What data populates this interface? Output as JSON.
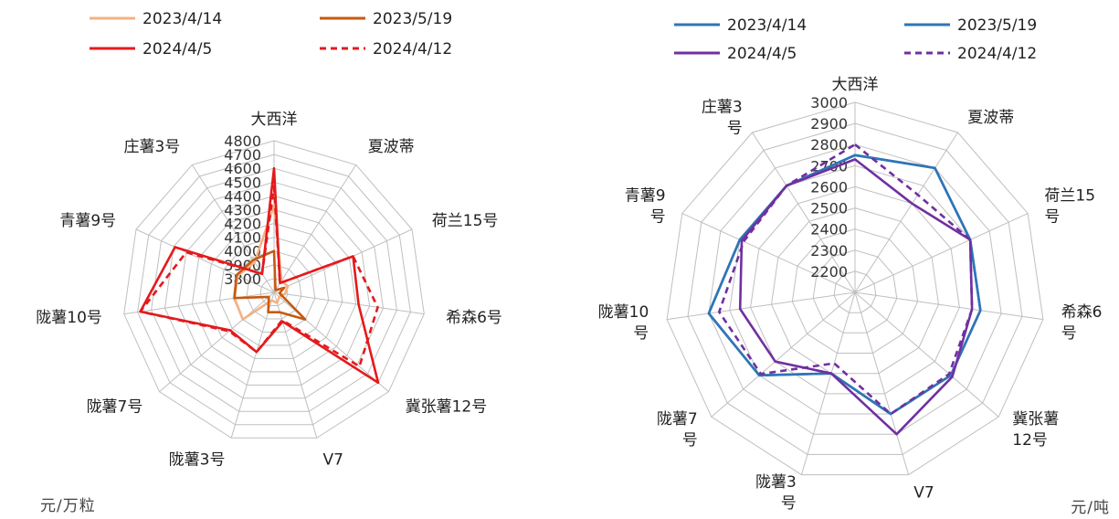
{
  "chart_data": [
    {
      "type": "radar",
      "unit": "元/万粒",
      "axes": [
        "大西洋",
        "夏波蒂",
        "荷兰15号",
        "希森6号",
        "冀张薯12号",
        "V7",
        "陇薯3号",
        "陇薯7号",
        "陇薯10号",
        "青薯9号",
        "庄薯3号"
      ],
      "ticks": [
        3800,
        3900,
        4000,
        4100,
        4200,
        4300,
        4400,
        4500,
        4600,
        4700,
        4800
      ],
      "r_range": [
        3700,
        4800
      ],
      "legend": "top",
      "series": [
        {
          "name": "2023/4/14",
          "color": "#F4B183",
          "dash": false,
          "values": [
            4330,
            3800,
            3810,
            3780,
            3750,
            3780,
            3760,
            4000,
            3990,
            3990,
            3960
          ]
        },
        {
          "name": "2023/5/19",
          "color": "#C55A11",
          "dash": false,
          "values": [
            4000,
            3720,
            3780,
            3740,
            4000,
            3850,
            3850,
            3750,
            3990,
            4000,
            3980
          ]
        },
        {
          "name": "2024/4/5",
          "color": "#E41A1C",
          "dash": false,
          "values": [
            4600,
            3780,
            4330,
            4320,
            4700,
            3920,
            4150,
            4120,
            4680,
            4490,
            3860
          ]
        },
        {
          "name": "2024/4/12",
          "color": "#E41A1C",
          "dash": true,
          "values": [
            4470,
            3780,
            4330,
            4460,
            4520,
            3910,
            4150,
            4130,
            4680,
            4400,
            3860
          ]
        }
      ]
    },
    {
      "type": "radar",
      "unit": "元/吨",
      "axes": [
        "大西洋",
        "夏波蒂",
        "荷兰15号",
        "希森6号",
        "冀张薯12号",
        "V7",
        "陇薯3号",
        "陇薯7号",
        "陇薯10号",
        "青薯9号",
        "庄薯3号"
      ],
      "axis_labels": [
        [
          "大西洋"
        ],
        [
          "夏波蒂"
        ],
        [
          "荷兰15",
          "号"
        ],
        [
          "希森6",
          "号"
        ],
        [
          "冀张薯",
          "12号"
        ],
        [
          "V7"
        ],
        [
          "陇薯3",
          "号"
        ],
        [
          "陇薯7",
          "号"
        ],
        [
          "陇薯10",
          "号"
        ],
        [
          "青薯9",
          "号"
        ],
        [
          "庄薯3",
          "号"
        ]
      ],
      "ticks": [
        2200,
        2300,
        2400,
        2500,
        2600,
        2700,
        2800,
        2900,
        3000
      ],
      "r_range": [
        2100,
        3000
      ],
      "legend": "top",
      "series": [
        {
          "name": "2023/4/14",
          "color": "#2E75B6",
          "dash": false,
          "values": [
            2750,
            2800,
            2700,
            2700,
            2700,
            2700,
            2500,
            2700,
            2800,
            2700,
            2700
          ]
        },
        {
          "name": "2023/5/19",
          "color": "#2E75B6",
          "dash": false,
          "values": [
            2750,
            2800,
            2700,
            2700,
            2700,
            2700,
            2500,
            2700,
            2800,
            2700,
            2700
          ]
        },
        {
          "name": "2024/4/5",
          "color": "#7030A0",
          "dash": false,
          "values": [
            2730,
            2600,
            2700,
            2660,
            2710,
            2800,
            2500,
            2600,
            2650,
            2690,
            2700
          ]
        },
        {
          "name": "2024/4/12",
          "color": "#7030A0",
          "dash": true,
          "values": [
            2800,
            2650,
            2700,
            2660,
            2690,
            2700,
            2450,
            2690,
            2750,
            2680,
            2700
          ]
        }
      ]
    }
  ]
}
